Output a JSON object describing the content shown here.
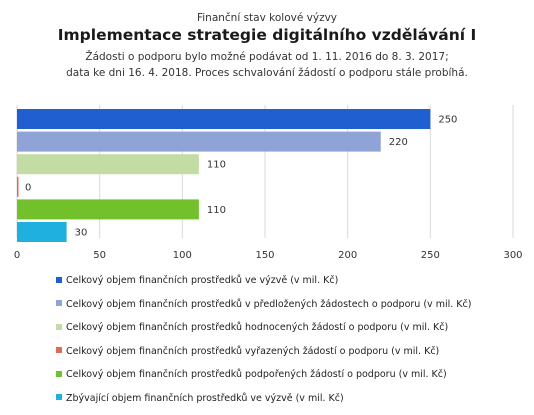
{
  "header": {
    "subtitle": "Finanční stav kolové výzvy",
    "title": "Implementace strategie digitálního vzdělávání I",
    "note_line1": "Žádosti o podporu bylo možné  podávat od 1. 11. 2016 do 8. 3. 2017;",
    "note_line2": "data ke dni 16. 4. 2018. Proces schvalování žádostí o podporu stále probíhá."
  },
  "chart_data": {
    "type": "bar",
    "orientation": "horizontal",
    "xlim": [
      0,
      300
    ],
    "x_ticks": [
      "0",
      "50",
      "100",
      "150",
      "200",
      "250",
      "300"
    ],
    "grid": true,
    "legend_position": "bottom",
    "series": [
      {
        "name": "Celkový objem finančních prostředků ve výzvě (v mil. Kč)",
        "value": 250,
        "label": "250",
        "color": "#1f5fd0"
      },
      {
        "name": "Celkový objem finančních prostředků v předložených žádostech o podporu (v mil. Kč)",
        "value": 220,
        "label": "220",
        "color": "#8fa3d6"
      },
      {
        "name": "Celkový objem finančních prostředků hodnocených žádostí o podporu (v mil. Kč)",
        "value": 110,
        "label": "110",
        "color": "#c3dca3"
      },
      {
        "name": "Celkový objem finančních prostředků vyřazených žádostí o podporu (v mil. Kč)",
        "value": 0,
        "label": "0",
        "color": "#e06b5a"
      },
      {
        "name": "Celkový objem finančních prostředků podpořených žádostí o podporu (v mil. Kč)",
        "value": 110,
        "label": "110",
        "color": "#72c02c"
      },
      {
        "name": "Zbývající objem finančních prostředků ve výzvě (v mil. Kč)",
        "value": 30,
        "label": "30",
        "color": "#1fb0e0"
      }
    ]
  }
}
